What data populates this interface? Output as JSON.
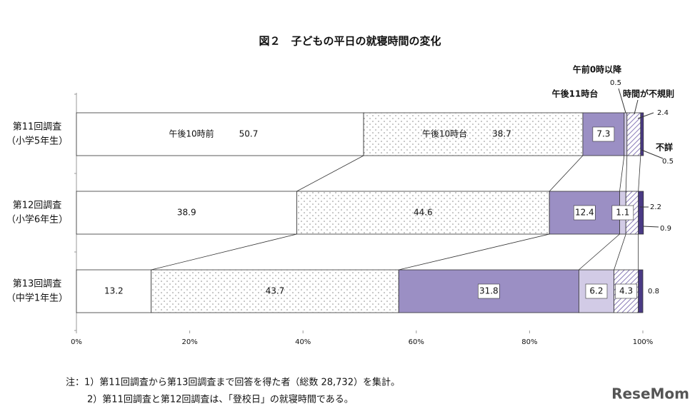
{
  "chart_data": {
    "type": "stacked-bar-horizontal",
    "title": "図２　子どもの平日の就寝時間の変化",
    "categories": [
      [
        "第11回調査",
        "（小学5年生）"
      ],
      [
        "第12回調査",
        "（小学6年生）"
      ],
      [
        "第13回調査",
        "（中学1年生）"
      ]
    ],
    "series": [
      {
        "name": "午後10時前",
        "color": "#ffffff",
        "pattern": "none",
        "values": [
          50.7,
          38.9,
          13.2
        ]
      },
      {
        "name": "午後10時台",
        "color": "#ffffff",
        "pattern": "dots",
        "values": [
          38.7,
          44.6,
          43.7
        ]
      },
      {
        "name": "午後11時台",
        "color": "#9b8fc4",
        "pattern": "none",
        "values": [
          7.3,
          12.4,
          31.8
        ]
      },
      {
        "name": "午前0時以降",
        "color": "#d2cbe6",
        "pattern": "none",
        "values": [
          0.5,
          1.1,
          6.2
        ]
      },
      {
        "name": "時間が不規則",
        "color": "#8a7cb8",
        "pattern": "hatch",
        "values": [
          2.4,
          2.2,
          4.3
        ]
      },
      {
        "name": "不詳",
        "color": "#4a3a85",
        "pattern": "none",
        "values": [
          0.5,
          0.9,
          0.8
        ]
      }
    ],
    "xlim": [
      0,
      100
    ],
    "xticks": [
      {
        "value": 0,
        "label": "0%"
      },
      {
        "value": 20,
        "label": "20%"
      },
      {
        "value": 40,
        "label": "40%"
      },
      {
        "value": 60,
        "label": "60%"
      },
      {
        "value": 80,
        "label": "80%"
      },
      {
        "value": 100,
        "label": "100%"
      }
    ],
    "notes": [
      "注：1）第11回調査から第13回調査まで回答を得た者（総数 28,732）を集計。",
      "2）第11回調査と第12回調査は、「登校日」の就寝時間である。"
    ],
    "watermark": "ReseMom"
  }
}
